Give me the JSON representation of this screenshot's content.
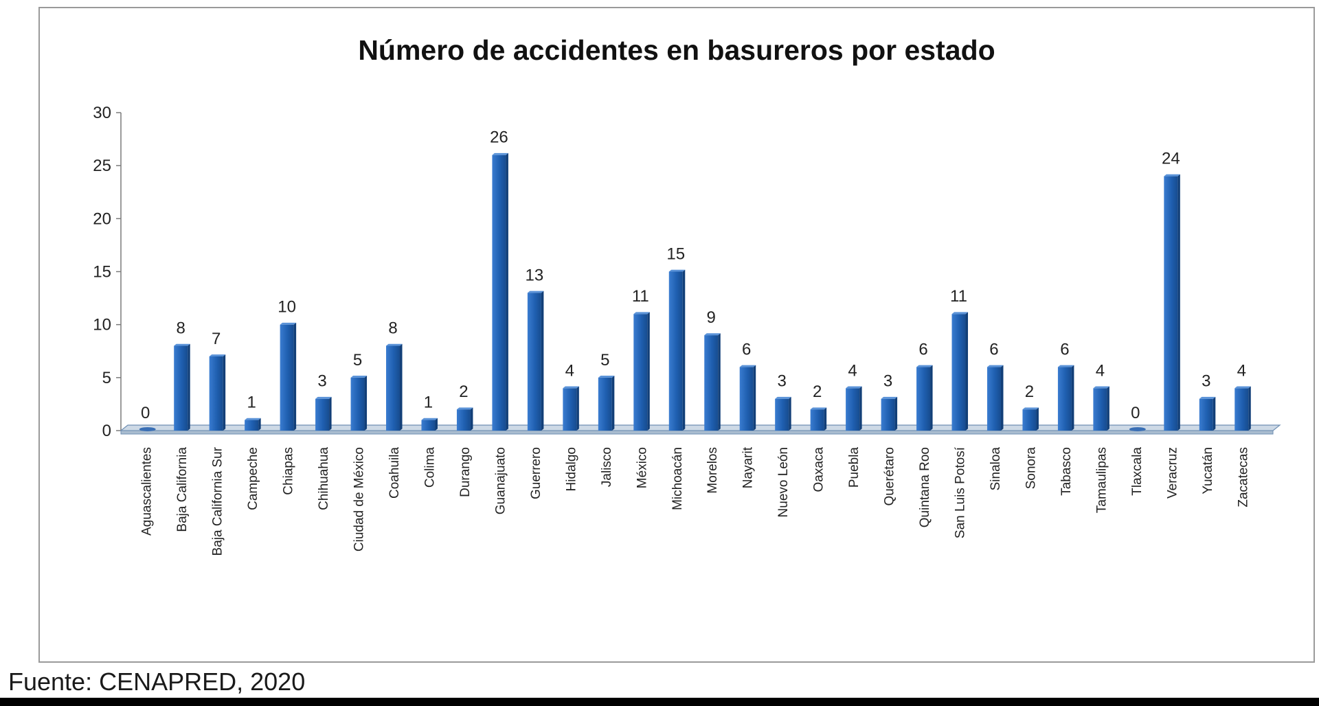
{
  "chart_data": {
    "type": "bar",
    "title": "Número de accidentes en basureros por estado",
    "xlabel": "",
    "ylabel": "",
    "ylim": [
      0,
      30
    ],
    "yticks": [
      0,
      5,
      10,
      15,
      20,
      25,
      30
    ],
    "grid": false,
    "legend": "none",
    "bar_color": "#1f5fb0",
    "categories": [
      "Aguascalientes",
      "Baja California",
      "Baja California Sur",
      "Campeche",
      "Chiapas",
      "Chihuahua",
      "Ciudad de México",
      "Coahuila",
      "Colima",
      "Durango",
      "Guanajuato",
      "Guerrero",
      "Hidalgo",
      "Jalisco",
      "México",
      "Michoacán",
      "Morelos",
      "Nayarit",
      "Nuevo León",
      "Oaxaca",
      "Puebla",
      "Querétaro",
      "Quintana Roo",
      "San Luis Potosí",
      "Sinaloa",
      "Sonora",
      "Tabasco",
      "Tamaulipas",
      "Tlaxcala",
      "Veracruz",
      "Yucatán",
      "Zacatecas"
    ],
    "values": [
      0,
      8,
      7,
      1,
      10,
      3,
      5,
      8,
      1,
      2,
      26,
      13,
      4,
      5,
      11,
      15,
      9,
      6,
      3,
      2,
      4,
      3,
      6,
      11,
      6,
      2,
      6,
      4,
      0,
      24,
      3,
      4
    ]
  },
  "source": "Fuente: CENAPRED, 2020"
}
